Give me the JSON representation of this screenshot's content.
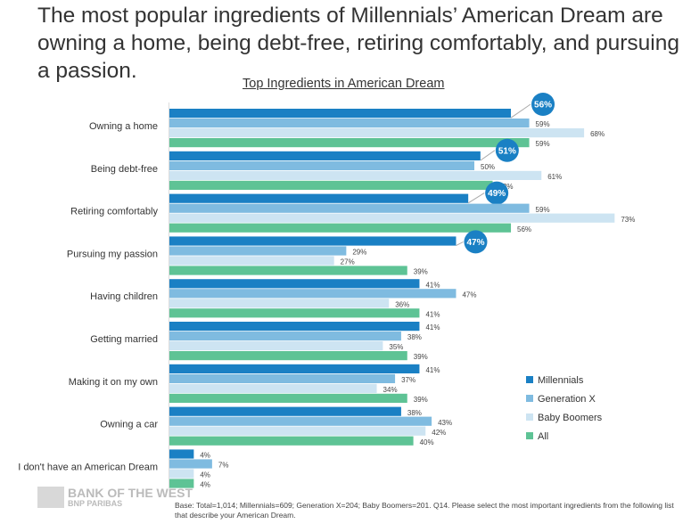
{
  "headline": "The most popular ingredients of Millennials’ American Dream are owning a home, being debt-free, retiring comfortably, and pursuing a passion.",
  "footnote": "Base: Total=1,014; Millennials=609; Generation X=204; Baby Boomers=201. Q14. Please select the most important ingredients from the following list that describe your American Dream.",
  "logo": {
    "line1": "BANK OF THE WEST",
    "line2": "BNP PARIBAS"
  },
  "chart_data": {
    "type": "bar",
    "orientation": "horizontal",
    "title": "Top Ingredients in American Dream",
    "categories": [
      "Owning a home",
      "Being debt-free",
      "Retiring comfortably",
      "Pursuing my passion",
      "Having children",
      "Getting married",
      "Making it on my own",
      "Owning a car",
      "I don't have an American Dream"
    ],
    "series": [
      {
        "name": "Millennials",
        "color": "#1a80c4",
        "values": [
          56,
          51,
          49,
          47,
          41,
          41,
          41,
          38,
          4
        ]
      },
      {
        "name": "Generation X",
        "color": "#7fbbe0",
        "values": [
          59,
          50,
          59,
          29,
          47,
          38,
          37,
          43,
          7
        ]
      },
      {
        "name": "Baby Boomers",
        "color": "#cde4f2",
        "values": [
          68,
          61,
          73,
          27,
          36,
          35,
          34,
          42,
          4
        ]
      },
      {
        "name": "All",
        "color": "#5ec395",
        "values": [
          59,
          53,
          56,
          39,
          41,
          39,
          39,
          40,
          4
        ]
      }
    ],
    "highlighted": {
      "series": "Millennials",
      "categories": [
        0,
        1,
        2,
        3
      ]
    },
    "value_format": "{v}%",
    "legend": "right",
    "grid": false,
    "xlim": [
      0,
      73
    ]
  }
}
